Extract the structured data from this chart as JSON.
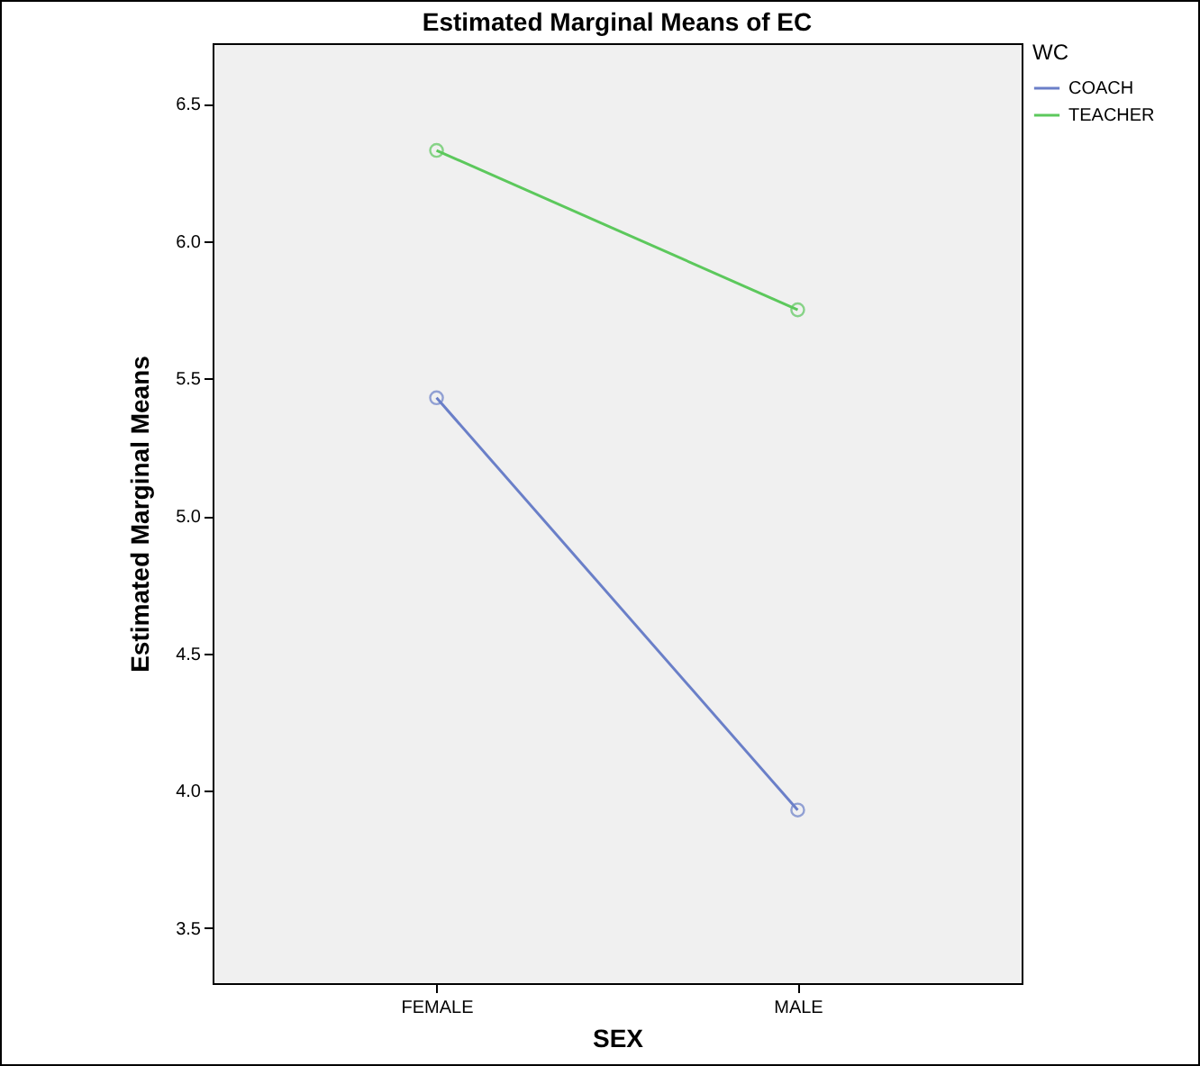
{
  "chart_data": {
    "type": "line",
    "title": "Estimated Marginal Means of EC",
    "xlabel": "SEX",
    "ylabel": "Estimated Marginal Means",
    "legend_title": "WC",
    "categories": [
      "FEMALE",
      "MALE"
    ],
    "series": [
      {
        "name": "COACH",
        "color": "#6a7fc8",
        "values": [
          5.43,
          3.93
        ]
      },
      {
        "name": "TEACHER",
        "color": "#5cc85c",
        "values": [
          6.33,
          5.75
        ]
      }
    ],
    "ylim": [
      3.3,
      6.72
    ],
    "yticks": [
      3.5,
      {
        "value": 4,
        "label": "4.0"
      },
      4.5,
      {
        "value": 5,
        "label": "5.0"
      },
      5.5,
      {
        "value": 6,
        "label": "6.0"
      },
      6.5
    ],
    "grid": false,
    "legend": "top right",
    "marker": "circle",
    "line_style": "solid"
  }
}
